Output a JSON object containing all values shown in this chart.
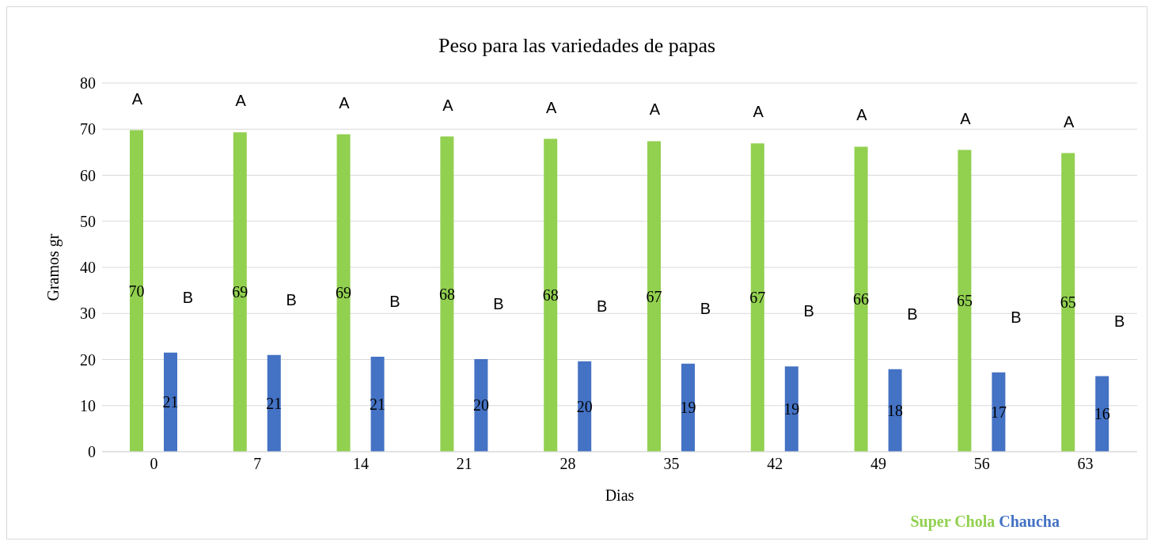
{
  "chart_data": {
    "type": "bar",
    "title": "Peso para  las variedades de papas",
    "xlabel": "Dias",
    "ylabel": "Gramos gr",
    "categories": [
      "0",
      "7",
      "14",
      "21",
      "28",
      "35",
      "42",
      "49",
      "56",
      "63"
    ],
    "series": [
      {
        "name": "Super Chola",
        "color": "#92d050",
        "values": [
          69.8,
          69.3,
          68.9,
          68.4,
          67.9,
          67.4,
          66.9,
          66.2,
          65.5,
          64.8
        ],
        "value_labels": [
          "70",
          "69",
          "69",
          "68",
          "68",
          "67",
          "67",
          "66",
          "65",
          "65"
        ]
      },
      {
        "name": "Chaucha",
        "color": "#4472c4",
        "values": [
          21.5,
          21.0,
          20.6,
          20.1,
          19.6,
          19.1,
          18.5,
          17.9,
          17.2,
          16.4
        ],
        "value_labels": [
          "21",
          "21",
          "21",
          "20",
          "20",
          "19",
          "19",
          "18",
          "17",
          "16"
        ]
      }
    ],
    "annotations": [
      "A",
      "A",
      "A",
      "A",
      "A",
      "A",
      "A",
      "A",
      "A",
      "A",
      "B",
      "B",
      "B",
      "B",
      "B",
      "B",
      "B",
      "B",
      "B",
      "B"
    ],
    "ylim": [
      0,
      80
    ],
    "yticks": [
      0,
      10,
      20,
      30,
      40,
      50,
      60,
      70,
      80
    ],
    "grid": "y",
    "legend": "bottom right"
  }
}
